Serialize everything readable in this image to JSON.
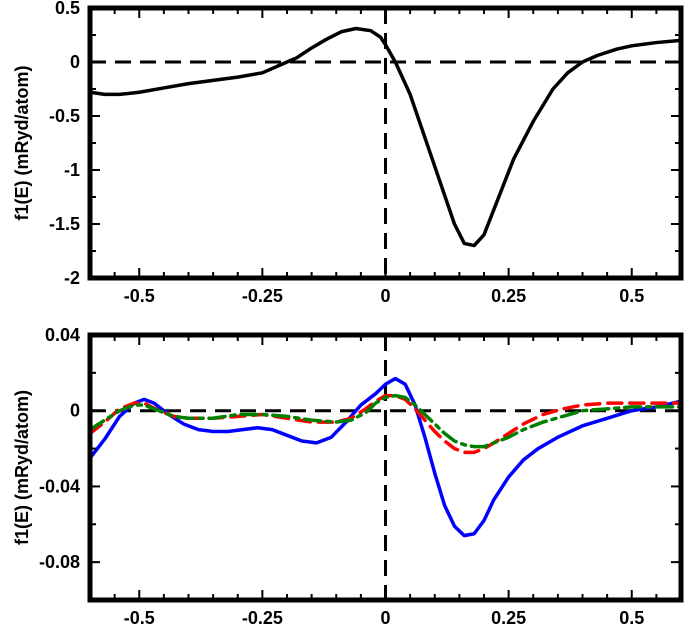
{
  "chart_data": [
    {
      "type": "line",
      "title": "",
      "xlabel": "",
      "ylabel": "f1(E) (mRyd/atom)",
      "xlim": [
        -0.6,
        0.6
      ],
      "ylim": [
        -2,
        0.5
      ],
      "x_ticks": [
        {
          "value": -0.5,
          "label": "-0.5"
        },
        {
          "value": -0.25,
          "label": "-0.25"
        },
        {
          "value": 0,
          "label": "0"
        },
        {
          "value": 0.25,
          "label": "0.25"
        },
        {
          "value": 0.5,
          "label": "0.5"
        }
      ],
      "y_ticks": [
        {
          "value": 0.5,
          "label": "0.5"
        },
        {
          "value": 0,
          "label": "0"
        },
        {
          "value": -0.5,
          "label": "-0.5"
        },
        {
          "value": -1,
          "label": "-1"
        },
        {
          "value": -1.5,
          "label": "-1.5"
        },
        {
          "value": -2,
          "label": "-2"
        }
      ],
      "reference_lines": {
        "y": 0,
        "x": 0,
        "style": "dashed",
        "color": "#000000"
      },
      "grid": false,
      "series": [
        {
          "color": "#000000",
          "style": "solid",
          "x": [
            -0.6,
            -0.57,
            -0.54,
            -0.5,
            -0.45,
            -0.4,
            -0.35,
            -0.3,
            -0.25,
            -0.2,
            -0.18,
            -0.15,
            -0.12,
            -0.09,
            -0.06,
            -0.03,
            -0.01,
            0,
            0.02,
            0.05,
            0.08,
            0.11,
            0.14,
            0.16,
            0.18,
            0.2,
            0.23,
            0.26,
            0.3,
            0.34,
            0.37,
            0.4,
            0.43,
            0.47,
            0.5,
            0.55,
            0.6
          ],
          "y": [
            -0.28,
            -0.3,
            -0.3,
            -0.28,
            -0.24,
            -0.2,
            -0.17,
            -0.14,
            -0.1,
            0,
            0.04,
            0.13,
            0.21,
            0.28,
            0.31,
            0.29,
            0.23,
            0.16,
            0.0,
            -0.3,
            -0.7,
            -1.1,
            -1.5,
            -1.68,
            -1.7,
            -1.6,
            -1.25,
            -0.9,
            -0.55,
            -0.25,
            -0.1,
            0.0,
            0.06,
            0.12,
            0.15,
            0.18,
            0.2
          ]
        }
      ]
    },
    {
      "type": "line",
      "title": "",
      "xlabel": "",
      "ylabel": "f1(E) (mRyd/atom)",
      "xlim": [
        -0.6,
        0.6
      ],
      "ylim": [
        -0.1,
        0.04
      ],
      "x_ticks": [
        {
          "value": -0.5,
          "label": "-0.5"
        },
        {
          "value": -0.25,
          "label": "-0.25"
        },
        {
          "value": 0,
          "label": "0"
        },
        {
          "value": 0.25,
          "label": "0.25"
        },
        {
          "value": 0.5,
          "label": "0.5"
        }
      ],
      "y_ticks": [
        {
          "value": 0.04,
          "label": "0.04"
        },
        {
          "value": 0,
          "label": "0"
        },
        {
          "value": -0.04,
          "label": "-0.04"
        },
        {
          "value": -0.08,
          "label": "-0.08"
        }
      ],
      "reference_lines": {
        "y": 0,
        "x": 0,
        "style": "dashed",
        "color": "#000000"
      },
      "grid": false,
      "series": [
        {
          "color": "#0000ff",
          "style": "solid",
          "x": [
            -0.6,
            -0.57,
            -0.54,
            -0.51,
            -0.49,
            -0.47,
            -0.44,
            -0.41,
            -0.38,
            -0.35,
            -0.32,
            -0.29,
            -0.26,
            -0.23,
            -0.2,
            -0.17,
            -0.14,
            -0.11,
            -0.08,
            -0.05,
            -0.02,
            0,
            0.02,
            0.04,
            0.06,
            0.08,
            0.1,
            0.12,
            0.14,
            0.16,
            0.18,
            0.2,
            0.22,
            0.25,
            0.28,
            0.31,
            0.35,
            0.4,
            0.45,
            0.5,
            0.55,
            0.6
          ],
          "y": [
            -0.025,
            -0.015,
            -0.003,
            0.004,
            0.006,
            0.004,
            -0.002,
            -0.007,
            -0.01,
            -0.011,
            -0.011,
            -0.01,
            -0.009,
            -0.01,
            -0.013,
            -0.016,
            -0.017,
            -0.014,
            -0.006,
            0.003,
            0.009,
            0.014,
            0.017,
            0.014,
            0.003,
            -0.014,
            -0.033,
            -0.05,
            -0.061,
            -0.066,
            -0.065,
            -0.058,
            -0.047,
            -0.035,
            -0.026,
            -0.02,
            -0.014,
            -0.008,
            -0.004,
            0.0,
            0.002,
            0.005
          ]
        },
        {
          "color": "#ff0000",
          "style": "dashed",
          "x": [
            -0.6,
            -0.57,
            -0.54,
            -0.51,
            -0.49,
            -0.46,
            -0.43,
            -0.4,
            -0.35,
            -0.3,
            -0.25,
            -0.2,
            -0.15,
            -0.1,
            -0.07,
            -0.04,
            -0.02,
            0,
            0.02,
            0.04,
            0.06,
            0.08,
            0.1,
            0.12,
            0.14,
            0.16,
            0.18,
            0.2,
            0.22,
            0.25,
            0.28,
            0.32,
            0.36,
            0.4,
            0.45,
            0.5,
            0.55,
            0.6
          ],
          "y": [
            -0.012,
            -0.006,
            0.001,
            0.004,
            0.004,
            0.0,
            -0.003,
            -0.004,
            -0.004,
            -0.003,
            -0.002,
            -0.004,
            -0.006,
            -0.006,
            -0.004,
            0.001,
            0.005,
            0.008,
            0.008,
            0.006,
            0.001,
            -0.005,
            -0.011,
            -0.016,
            -0.02,
            -0.022,
            -0.022,
            -0.02,
            -0.017,
            -0.012,
            -0.007,
            -0.002,
            0.001,
            0.003,
            0.004,
            0.004,
            0.004,
            0.004
          ]
        },
        {
          "color": "#008000",
          "style": "dashdot",
          "x": [
            -0.6,
            -0.57,
            -0.54,
            -0.51,
            -0.49,
            -0.46,
            -0.43,
            -0.4,
            -0.35,
            -0.3,
            -0.25,
            -0.2,
            -0.15,
            -0.1,
            -0.07,
            -0.04,
            -0.02,
            0,
            0.02,
            0.04,
            0.06,
            0.08,
            0.1,
            0.12,
            0.14,
            0.16,
            0.18,
            0.2,
            0.22,
            0.25,
            0.28,
            0.32,
            0.36,
            0.4,
            0.45,
            0.5,
            0.55,
            0.6
          ],
          "y": [
            -0.01,
            -0.005,
            0.0,
            0.003,
            0.003,
            0.0,
            -0.003,
            -0.004,
            -0.004,
            -0.002,
            -0.002,
            -0.003,
            -0.005,
            -0.006,
            -0.005,
            -0.001,
            0.004,
            0.007,
            0.008,
            0.007,
            0.003,
            -0.002,
            -0.007,
            -0.012,
            -0.016,
            -0.018,
            -0.019,
            -0.019,
            -0.017,
            -0.014,
            -0.01,
            -0.006,
            -0.003,
            0.0,
            0.001,
            0.002,
            0.002,
            0.002
          ]
        }
      ]
    }
  ]
}
